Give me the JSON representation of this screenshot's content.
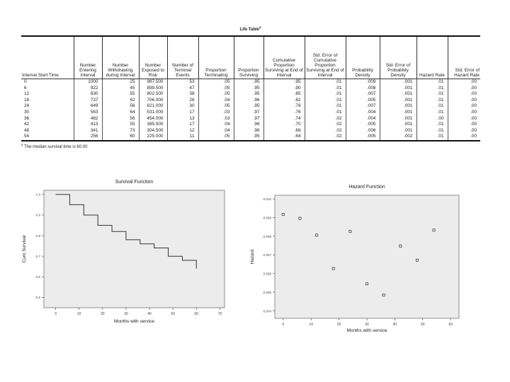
{
  "life_table": {
    "title": "Life Table",
    "title_superscript": "a",
    "headers": [
      "Interval Start Time",
      "Number Entering Interval",
      "Number Withdrawing during Interval",
      "Number Exposed to Risk",
      "Number of Terminal Events",
      "Proportion Terminating",
      "Proportion Surviving",
      "Cumulative Proportion Surviving at End of Interval",
      "Std. Error of Cumulative Proportion Surviving at End of Interval",
      "Probability Density",
      "Std. Error of Probability Density",
      "Hazard Rate",
      "Std. Error of Hazard Rate"
    ],
    "rows": [
      [
        "0",
        "1000",
        "25",
        "987.500",
        "53",
        ".05",
        ".95",
        ".95",
        ".01",
        ".009",
        ".001",
        ".01",
        ".00"
      ],
      [
        "6",
        "922",
        "45",
        "899.500",
        "47",
        ".05",
        ".95",
        ".90",
        ".01",
        ".008",
        ".001",
        ".01",
        ".00"
      ],
      [
        "12",
        "830",
        "55",
        "802.500",
        "38",
        ".05",
        ".95",
        ".85",
        ".01",
        ".007",
        ".001",
        ".01",
        ".00"
      ],
      [
        "18",
        "737",
        "62",
        "706.000",
        "28",
        ".04",
        ".96",
        ".82",
        ".01",
        ".005",
        ".001",
        ".01",
        ".00"
      ],
      [
        "24",
        "649",
        "56",
        "621.000",
        "30",
        ".05",
        ".95",
        ".78",
        ".01",
        ".007",
        ".001",
        ".01",
        ".00"
      ],
      [
        "30",
        "563",
        "64",
        "531.000",
        "17",
        ".03",
        ".97",
        ".76",
        ".01",
        ".004",
        ".001",
        ".01",
        ".00"
      ],
      [
        "36",
        "482",
        "56",
        "454.000",
        "13",
        ".03",
        ".97",
        ".74",
        ".02",
        ".004",
        ".001",
        ".00",
        ".00"
      ],
      [
        "42",
        "413",
        "55",
        "385.500",
        "17",
        ".04",
        ".96",
        ".70",
        ".02",
        ".005",
        ".001",
        ".01",
        ".00"
      ],
      [
        "48",
        "341",
        "73",
        "304.500",
        "12",
        ".04",
        ".96",
        ".68",
        ".02",
        ".006",
        ".001",
        ".01",
        ".00"
      ],
      [
        "54",
        "256",
        "60",
        "225.000",
        "11",
        ".05",
        ".95",
        ".64",
        ".02",
        ".005",
        ".002",
        ".01",
        ".00"
      ]
    ],
    "footnote_marker": "a",
    "footnote": "The median survival time is 60.00"
  },
  "chart_data": [
    {
      "type": "line",
      "title": "Survival Function",
      "xlabel": "Months with service",
      "ylabel": "Cum Survival",
      "xlim": [
        -5,
        72
      ],
      "ylim": [
        0.45,
        1.02
      ],
      "xticks": [
        0,
        10,
        20,
        30,
        40,
        50,
        60,
        70
      ],
      "yticks": [
        0.5,
        0.6,
        0.7,
        0.8,
        0.9,
        1.0
      ],
      "ytick_labels": [
        "0.5",
        "0.6",
        "0.7",
        "0.8",
        "0.9",
        "1.0"
      ],
      "step": true,
      "x": [
        0,
        6,
        12,
        18,
        24,
        30,
        36,
        42,
        48,
        54,
        60
      ],
      "y": [
        1.0,
        0.95,
        0.9,
        0.85,
        0.82,
        0.78,
        0.76,
        0.74,
        0.7,
        0.68,
        0.64
      ],
      "background": "#ececec",
      "line_color": "#333333"
    },
    {
      "type": "scatter",
      "title": "Hazard Function",
      "xlabel": "Months with service",
      "ylabel": "Hazard",
      "xlim": [
        -3,
        63
      ],
      "ylim": [
        0.0036,
        0.0102
      ],
      "xticks": [
        0,
        10,
        20,
        30,
        40,
        50,
        60
      ],
      "yticks": [
        0.004,
        0.005,
        0.006,
        0.007,
        0.008,
        0.009,
        0.01
      ],
      "ytick_labels": [
        "0.004",
        "0.005",
        "0.006",
        "0.007",
        "0.008",
        "0.009",
        "0.010"
      ],
      "x": [
        0,
        6,
        12,
        18,
        24,
        30,
        36,
        42,
        48,
        54
      ],
      "y": [
        0.00917,
        0.00896,
        0.00806,
        0.00627,
        0.00826,
        0.00545,
        0.00485,
        0.00748,
        0.00672,
        0.00833
      ],
      "background": "#ececec",
      "marker_color": "#333333"
    }
  ]
}
